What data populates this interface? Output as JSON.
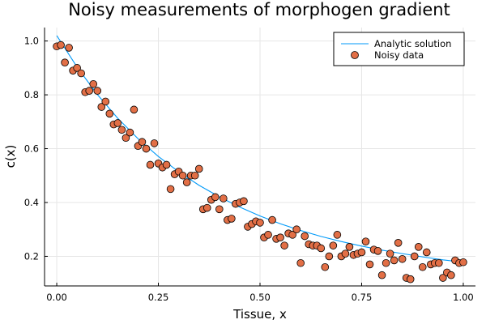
{
  "chart_data": {
    "type": "scatter",
    "title": "Noisy measurements of morphogen gradient",
    "xlabel": "Tissue, x",
    "ylabel": "c(x)",
    "xlim": [
      -0.03,
      1.03
    ],
    "ylim": [
      0.09,
      1.05
    ],
    "xticks": [
      {
        "value": 0.0,
        "label": "0.00"
      },
      {
        "value": 0.25,
        "label": "0.25"
      },
      {
        "value": 0.5,
        "label": "0.50"
      },
      {
        "value": 0.75,
        "label": "0.75"
      },
      {
        "value": 1.0,
        "label": "1.00"
      }
    ],
    "yticks": [
      {
        "value": 0.2,
        "label": "0.2"
      },
      {
        "value": 0.4,
        "label": "0.4"
      },
      {
        "value": 0.6,
        "label": "0.6"
      },
      {
        "value": 0.8,
        "label": "0.8"
      },
      {
        "value": 1.0,
        "label": "1.0"
      }
    ],
    "grid": true,
    "legend": {
      "position": "top-right"
    },
    "colors": {
      "line": "#009af9",
      "points": "#e26f46"
    },
    "series": [
      {
        "name": "Analytic solution",
        "kind": "line",
        "x": [
          0.0,
          0.05,
          0.1,
          0.15,
          0.2,
          0.25,
          0.3,
          0.35,
          0.4,
          0.45,
          0.5,
          0.55,
          0.6,
          0.65,
          0.7,
          0.75,
          0.8,
          0.85,
          0.9,
          0.95,
          1.0
        ],
        "y": [
          1.02,
          0.903,
          0.801,
          0.713,
          0.637,
          0.571,
          0.514,
          0.464,
          0.421,
          0.383,
          0.35,
          0.321,
          0.296,
          0.274,
          0.255,
          0.238,
          0.223,
          0.21,
          0.198,
          0.187,
          0.178
        ]
      },
      {
        "name": "Noisy data",
        "kind": "scatter",
        "x": [
          0.0,
          0.01,
          0.02,
          0.03,
          0.04,
          0.05,
          0.06,
          0.07,
          0.08,
          0.09,
          0.1,
          0.11,
          0.12,
          0.13,
          0.14,
          0.15,
          0.16,
          0.17,
          0.18,
          0.19,
          0.2,
          0.21,
          0.22,
          0.23,
          0.24,
          0.25,
          0.26,
          0.27,
          0.28,
          0.29,
          0.3,
          0.31,
          0.32,
          0.33,
          0.34,
          0.35,
          0.36,
          0.37,
          0.38,
          0.39,
          0.4,
          0.41,
          0.42,
          0.43,
          0.44,
          0.45,
          0.46,
          0.47,
          0.48,
          0.49,
          0.5,
          0.51,
          0.52,
          0.53,
          0.54,
          0.55,
          0.56,
          0.57,
          0.58,
          0.59,
          0.6,
          0.61,
          0.62,
          0.63,
          0.64,
          0.65,
          0.66,
          0.67,
          0.68,
          0.69,
          0.7,
          0.71,
          0.72,
          0.73,
          0.74,
          0.75,
          0.76,
          0.77,
          0.78,
          0.79,
          0.8,
          0.81,
          0.82,
          0.83,
          0.84,
          0.85,
          0.86,
          0.87,
          0.88,
          0.89,
          0.9,
          0.91,
          0.92,
          0.93,
          0.94,
          0.95,
          0.96,
          0.97,
          0.98,
          0.99,
          1.0
        ],
        "y": [
          0.98,
          0.985,
          0.92,
          0.975,
          0.89,
          0.9,
          0.88,
          0.81,
          0.815,
          0.84,
          0.815,
          0.755,
          0.775,
          0.73,
          0.69,
          0.695,
          0.67,
          0.64,
          0.66,
          0.745,
          0.61,
          0.625,
          0.6,
          0.54,
          0.62,
          0.545,
          0.53,
          0.54,
          0.45,
          0.505,
          0.515,
          0.5,
          0.475,
          0.5,
          0.5,
          0.525,
          0.375,
          0.38,
          0.41,
          0.42,
          0.375,
          0.415,
          0.335,
          0.34,
          0.395,
          0.4,
          0.405,
          0.31,
          0.32,
          0.33,
          0.325,
          0.27,
          0.28,
          0.335,
          0.265,
          0.27,
          0.24,
          0.285,
          0.28,
          0.3,
          0.175,
          0.275,
          0.245,
          0.24,
          0.24,
          0.23,
          0.16,
          0.2,
          0.24,
          0.28,
          0.2,
          0.21,
          0.235,
          0.205,
          0.21,
          0.215,
          0.255,
          0.17,
          0.225,
          0.22,
          0.13,
          0.175,
          0.21,
          0.185,
          0.25,
          0.19,
          0.12,
          0.115,
          0.2,
          0.235,
          0.16,
          0.215,
          0.17,
          0.175,
          0.175,
          0.12,
          0.14,
          0.13,
          0.185,
          0.175,
          0.178
        ]
      }
    ]
  }
}
